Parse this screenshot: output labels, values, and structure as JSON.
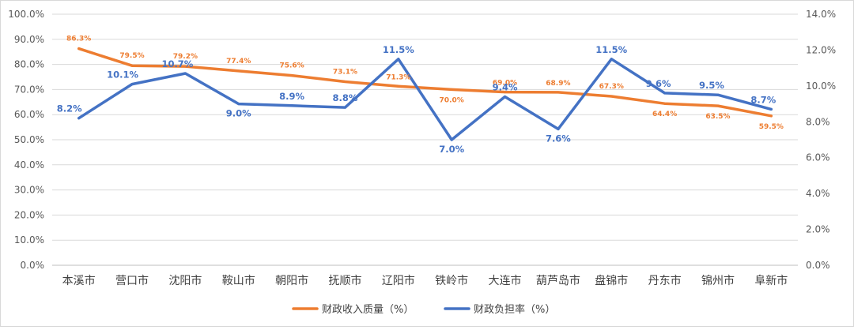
{
  "chart_data": {
    "type": "line",
    "categories": [
      "本溪市",
      "营口市",
      "沈阳市",
      "鞍山市",
      "朝阳市",
      "抚顺市",
      "辽阳市",
      "铁岭市",
      "大连市",
      "葫芦岛市",
      "盘锦市",
      "丹东市",
      "锦州市",
      "阜新市"
    ],
    "series": [
      {
        "name": "财政收入质量（%）",
        "axis": "left",
        "color": "#ED7D31",
        "values": [
          86.3,
          79.5,
          79.2,
          77.4,
          75.6,
          73.1,
          71.3,
          70.0,
          69.0,
          68.9,
          67.3,
          64.4,
          63.5,
          59.5
        ],
        "labels": [
          "86.3%",
          "79.5%",
          "79.2%",
          "77.4%",
          "75.6%",
          "73.1%",
          "71.3%",
          "70.0%",
          "69.0%",
          "68.9%",
          "67.3%",
          "64.4%",
          "63.5%",
          "59.5%"
        ]
      },
      {
        "name": "财政负担率（%）",
        "axis": "right",
        "color": "#4472C4",
        "values": [
          8.2,
          10.1,
          10.7,
          9.0,
          8.9,
          8.8,
          11.5,
          7.0,
          9.4,
          7.6,
          11.5,
          9.6,
          9.5,
          8.7
        ],
        "labels": [
          "8.2%",
          "10.1%",
          "10.7%",
          "9.0%",
          "8.9%",
          "8.8%",
          "11.5%",
          "7.0%",
          "9.4%",
          "7.6%",
          "11.5%",
          "9.6%",
          "9.5%",
          "8.7%"
        ]
      }
    ],
    "y_left": {
      "range": [
        0,
        100
      ],
      "ticks": [
        0,
        10,
        20,
        30,
        40,
        50,
        60,
        70,
        80,
        90,
        100
      ],
      "tick_labels": [
        "0.0%",
        "10.0%",
        "20.0%",
        "30.0%",
        "40.0%",
        "50.0%",
        "60.0%",
        "70.0%",
        "80.0%",
        "90.0%",
        "100.0%"
      ]
    },
    "y_right": {
      "range": [
        0,
        14
      ],
      "ticks": [
        0,
        2,
        4,
        6,
        8,
        10,
        12,
        14
      ],
      "tick_labels": [
        "0.0%",
        "2.0%",
        "4.0%",
        "6.0%",
        "8.0%",
        "10.0%",
        "12.0%",
        "14.0%"
      ]
    },
    "grid": true,
    "legend_position": "bottom"
  }
}
